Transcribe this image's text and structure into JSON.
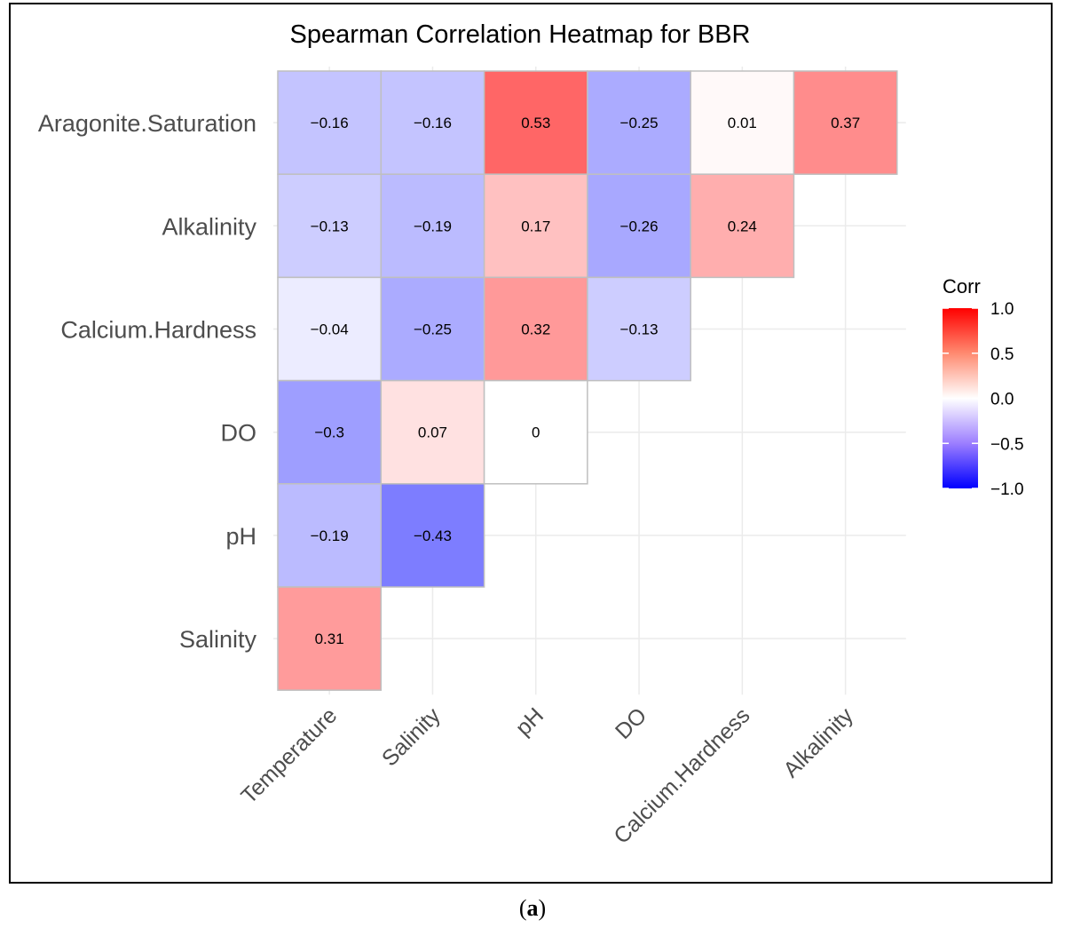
{
  "caption": {
    "open": "(",
    "letter": "a",
    "close": ")"
  },
  "chart_data": {
    "type": "heatmap",
    "title": "Spearman Correlation Heatmap for BBR",
    "x_categories": [
      "Temperature",
      "Salinity",
      "pH",
      "DO",
      "Calcium.Hardness",
      "Alkalinity"
    ],
    "y_categories": [
      "Aragonite.Saturation",
      "Alkalinity",
      "Calcium.Hardness",
      "DO",
      "pH",
      "Salinity"
    ],
    "cells": [
      {
        "x": "Temperature",
        "y": "Aragonite.Saturation",
        "value": -0.16,
        "label": "−0.16"
      },
      {
        "x": "Salinity",
        "y": "Aragonite.Saturation",
        "value": -0.16,
        "label": "−0.16"
      },
      {
        "x": "pH",
        "y": "Aragonite.Saturation",
        "value": 0.53,
        "label": "0.53"
      },
      {
        "x": "DO",
        "y": "Aragonite.Saturation",
        "value": -0.25,
        "label": "−0.25"
      },
      {
        "x": "Calcium.Hardness",
        "y": "Aragonite.Saturation",
        "value": 0.01,
        "label": "0.01"
      },
      {
        "x": "Alkalinity",
        "y": "Aragonite.Saturation",
        "value": 0.37,
        "label": "0.37"
      },
      {
        "x": "Temperature",
        "y": "Alkalinity",
        "value": -0.13,
        "label": "−0.13"
      },
      {
        "x": "Salinity",
        "y": "Alkalinity",
        "value": -0.19,
        "label": "−0.19"
      },
      {
        "x": "pH",
        "y": "Alkalinity",
        "value": 0.17,
        "label": "0.17"
      },
      {
        "x": "DO",
        "y": "Alkalinity",
        "value": -0.26,
        "label": "−0.26"
      },
      {
        "x": "Calcium.Hardness",
        "y": "Alkalinity",
        "value": 0.24,
        "label": "0.24"
      },
      {
        "x": "Temperature",
        "y": "Calcium.Hardness",
        "value": -0.04,
        "label": "−0.04"
      },
      {
        "x": "Salinity",
        "y": "Calcium.Hardness",
        "value": -0.25,
        "label": "−0.25"
      },
      {
        "x": "pH",
        "y": "Calcium.Hardness",
        "value": 0.32,
        "label": "0.32"
      },
      {
        "x": "DO",
        "y": "Calcium.Hardness",
        "value": -0.13,
        "label": "−0.13"
      },
      {
        "x": "Temperature",
        "y": "DO",
        "value": -0.3,
        "label": "−0.3"
      },
      {
        "x": "Salinity",
        "y": "DO",
        "value": 0.07,
        "label": "0.07"
      },
      {
        "x": "pH",
        "y": "DO",
        "value": 0,
        "label": "0"
      },
      {
        "x": "Temperature",
        "y": "pH",
        "value": -0.19,
        "label": "−0.19"
      },
      {
        "x": "Salinity",
        "y": "pH",
        "value": -0.43,
        "label": "−0.43"
      },
      {
        "x": "Temperature",
        "y": "Salinity",
        "value": 0.31,
        "label": "0.31"
      }
    ],
    "legend": {
      "title": "Corr",
      "placement": "right",
      "ticks": [
        {
          "value": 1.0,
          "label": "1.0"
        },
        {
          "value": 0.5,
          "label": "0.5"
        },
        {
          "value": 0.0,
          "label": "0.0"
        },
        {
          "value": -0.5,
          "label": "−0.5"
        },
        {
          "value": -1.0,
          "label": "−1.0"
        }
      ],
      "range": [
        -1,
        1
      ]
    },
    "colors": {
      "low": "#0000ff",
      "mid": "#ffffff",
      "high": "#ff0000",
      "cell_border": "#bfbfbf",
      "grid": "#ebebeb"
    },
    "grid": true
  }
}
